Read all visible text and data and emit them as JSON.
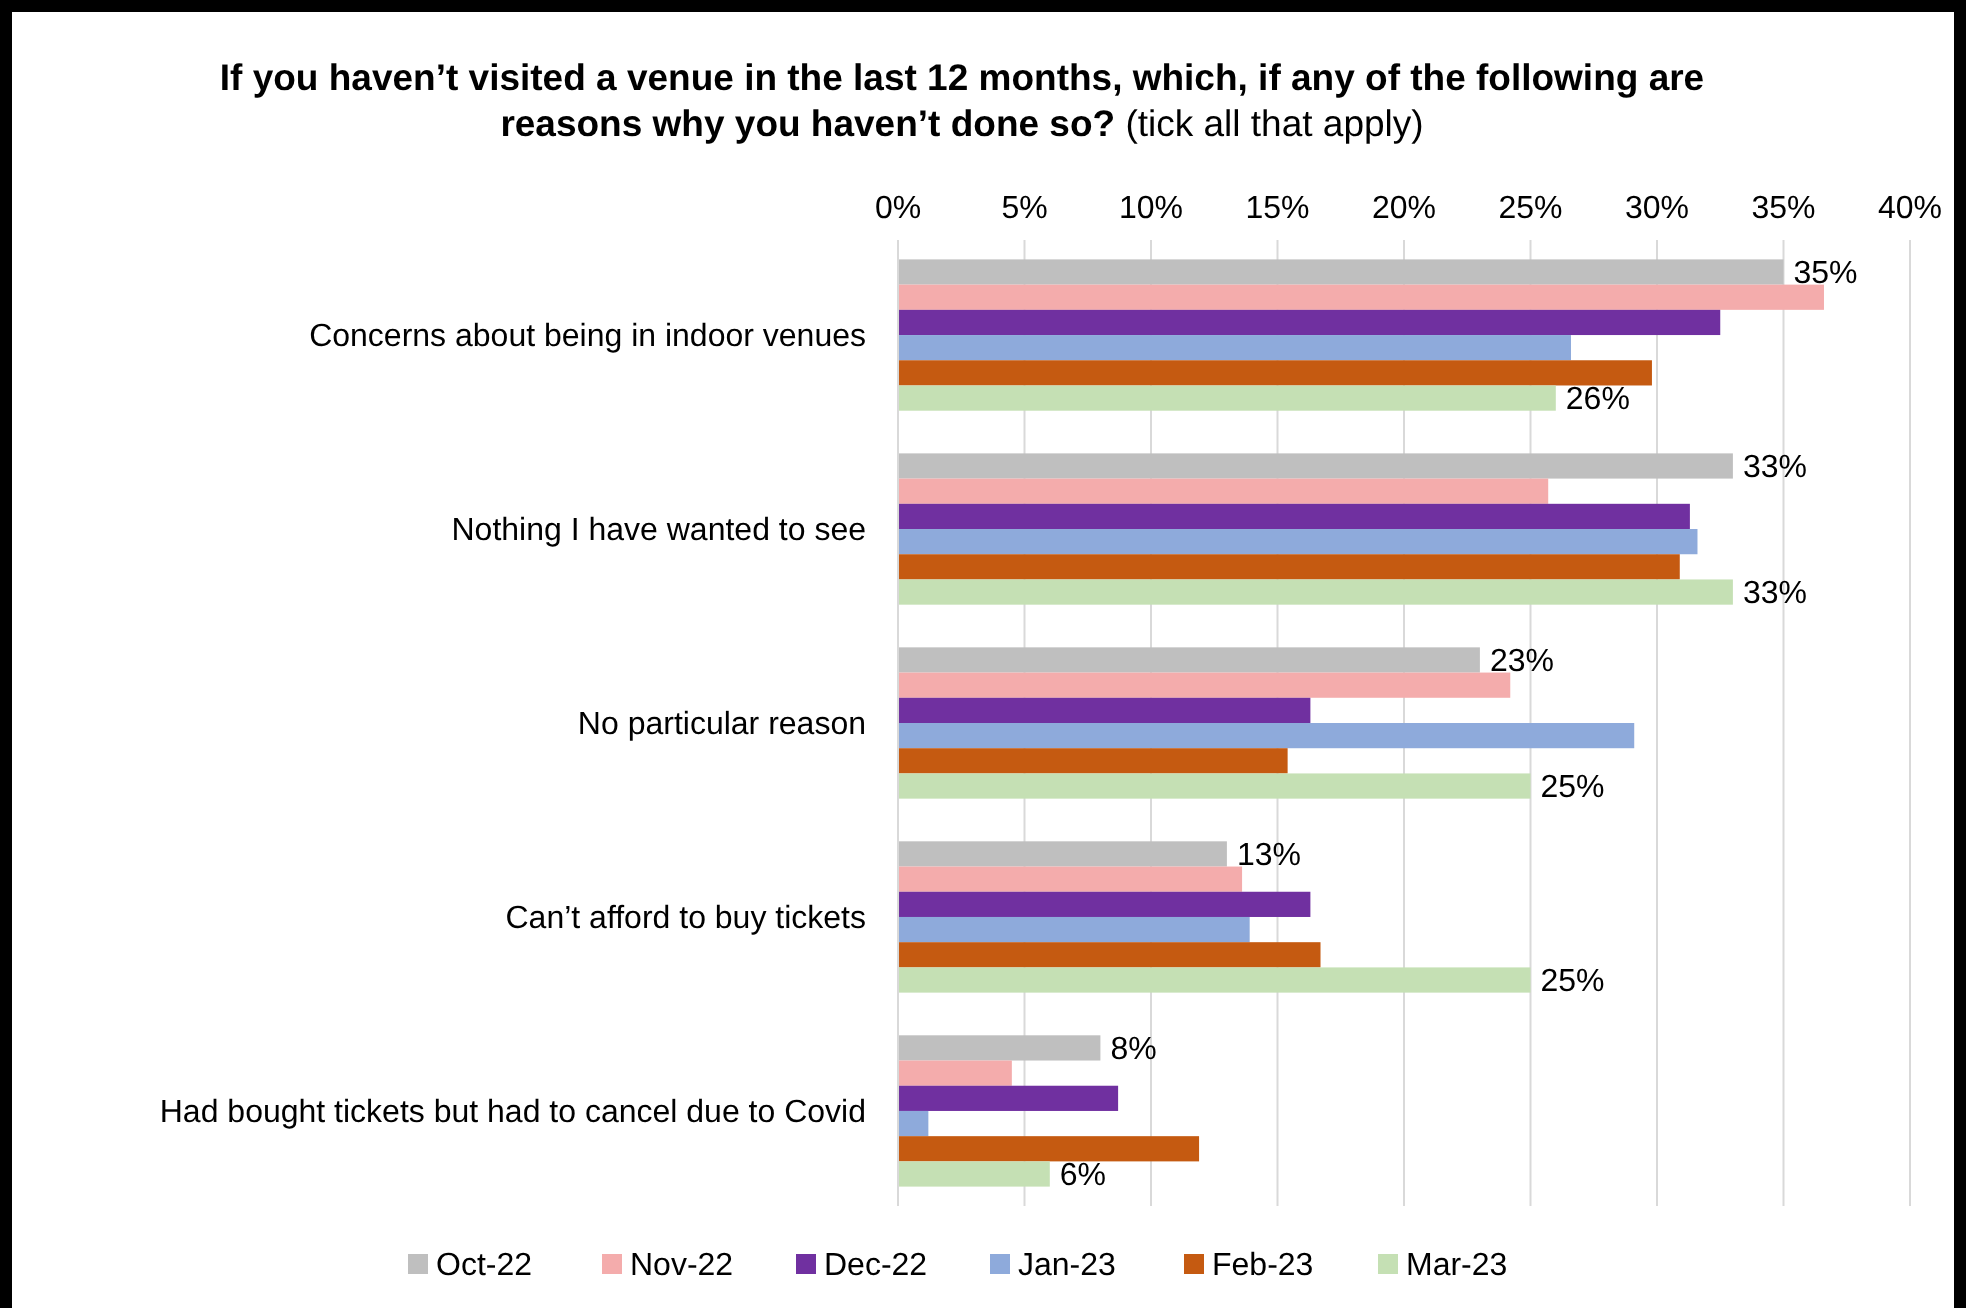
{
  "chart_data": {
    "type": "bar",
    "orientation": "horizontal",
    "title": "If you haven’t visited a venue in the last 12 months, which, if any of the following are reasons why you haven’t done so?",
    "subtitle": "(tick all that apply)",
    "categories": [
      "Concerns about being in indoor venues",
      "Nothing I have wanted to see",
      "No particular reason",
      "Can’t afford to buy tickets",
      "Had bought tickets but had to cancel due to Covid"
    ],
    "series": [
      {
        "name": "Oct-22",
        "color": "#bfbfbf",
        "values": [
          35,
          33,
          23,
          13,
          8
        ],
        "value_labels": [
          "35%",
          "33%",
          "23%",
          "13%",
          "8%"
        ]
      },
      {
        "name": "Nov-22",
        "color": "#f4acac",
        "values": [
          36.6,
          25.7,
          24.2,
          13.6,
          4.5
        ]
      },
      {
        "name": "Dec-22",
        "color": "#7030a0",
        "values": [
          32.5,
          31.3,
          16.3,
          16.3,
          8.7
        ]
      },
      {
        "name": "Jan-23",
        "color": "#8eaadb",
        "values": [
          26.6,
          31.6,
          29.1,
          13.9,
          1.2
        ]
      },
      {
        "name": "Feb-23",
        "color": "#c55a11",
        "values": [
          29.8,
          30.9,
          15.4,
          16.7,
          11.9
        ]
      },
      {
        "name": "Mar-23",
        "color": "#c5e0b4",
        "values": [
          26,
          33,
          25,
          25,
          6
        ],
        "value_labels": [
          "26%",
          "33%",
          "25%",
          "25%",
          "6%"
        ]
      }
    ],
    "xlim": [
      0,
      40
    ],
    "xticks": [
      {
        "value": 0,
        "label": "0%"
      },
      {
        "value": 5,
        "label": "5%"
      },
      {
        "value": 10,
        "label": "10%"
      },
      {
        "value": 15,
        "label": "15%"
      },
      {
        "value": 20,
        "label": "20%"
      },
      {
        "value": 25,
        "label": "25%"
      },
      {
        "value": 30,
        "label": "30%"
      },
      {
        "value": 35,
        "label": "35%"
      },
      {
        "value": 40,
        "label": "40%"
      }
    ],
    "grid": "x",
    "legend": "bottom"
  }
}
